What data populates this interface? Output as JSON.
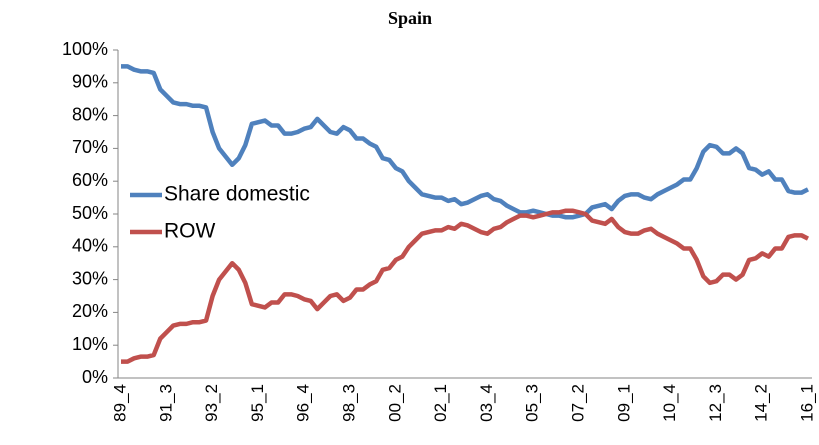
{
  "chart_data": {
    "type": "line",
    "title": "Spain",
    "categories": [
      "89_4",
      null,
      null,
      null,
      null,
      null,
      null,
      "91_3",
      null,
      null,
      null,
      null,
      null,
      null,
      "93_2",
      null,
      null,
      null,
      null,
      null,
      null,
      "95_1",
      null,
      null,
      null,
      null,
      null,
      null,
      "96_4",
      null,
      null,
      null,
      null,
      null,
      null,
      "98_3",
      null,
      null,
      null,
      null,
      null,
      null,
      "00_2",
      null,
      null,
      null,
      null,
      null,
      null,
      "02_1",
      null,
      null,
      null,
      null,
      null,
      null,
      "03_4",
      null,
      null,
      null,
      null,
      null,
      null,
      "05_3",
      null,
      null,
      null,
      null,
      null,
      null,
      "07_2",
      null,
      null,
      null,
      null,
      null,
      null,
      "09_1",
      null,
      null,
      null,
      null,
      null,
      null,
      "10_4",
      null,
      null,
      null,
      null,
      null,
      null,
      "12_3",
      null,
      null,
      null,
      null,
      null,
      null,
      "14_2",
      null,
      null,
      null,
      null,
      null,
      null,
      "16_1"
    ],
    "series": [
      {
        "name": "Share domestic",
        "color": "#4f81bd",
        "values": [
          95,
          95,
          94,
          93.5,
          93.5,
          93,
          88,
          86,
          84,
          83.5,
          83.5,
          83,
          83,
          82.5,
          75,
          70,
          67.5,
          65,
          67,
          71,
          77.5,
          78,
          78.5,
          77,
          77,
          74.5,
          74.5,
          75,
          76,
          76.5,
          79,
          77,
          75,
          74.5,
          76.5,
          75.5,
          73,
          73,
          71.5,
          70.5,
          67,
          66.5,
          64,
          63,
          60,
          58,
          56,
          55.5,
          55,
          55,
          54,
          54.5,
          53,
          53.5,
          54.5,
          55.5,
          56,
          54.5,
          54,
          52.5,
          51.5,
          50.5,
          50.5,
          51,
          50.5,
          50,
          49.5,
          49.5,
          49,
          49,
          49.5,
          50,
          52,
          52.5,
          53,
          51.5,
          54,
          55.5,
          56,
          56,
          55,
          54.5,
          56,
          57,
          58,
          59,
          60.5,
          60.5,
          64,
          69,
          71,
          70.5,
          68.5,
          68.5,
          70,
          68.5,
          64,
          63.5,
          62,
          63,
          60.5,
          60.5,
          57,
          56.5,
          56.5,
          57.5
        ]
      },
      {
        "name": "ROW",
        "color": "#c0504d",
        "values": [
          5,
          5,
          6,
          6.5,
          6.5,
          7,
          12,
          14,
          16,
          16.5,
          16.5,
          17,
          17,
          17.5,
          25,
          30,
          32.5,
          35,
          33,
          29,
          22.5,
          22,
          21.5,
          23,
          23,
          25.5,
          25.5,
          25,
          24,
          23.5,
          21,
          23,
          25,
          25.5,
          23.5,
          24.5,
          27,
          27,
          28.5,
          29.5,
          33,
          33.5,
          36,
          37,
          40,
          42,
          44,
          44.5,
          45,
          45,
          46,
          45.5,
          47,
          46.5,
          45.5,
          44.5,
          44,
          45.5,
          46,
          47.5,
          48.5,
          49.5,
          49.5,
          49,
          49.5,
          50,
          50.5,
          50.5,
          51,
          51,
          50.5,
          50,
          48,
          47.5,
          47,
          48.5,
          46,
          44.5,
          44,
          44,
          45,
          45.5,
          44,
          43,
          42,
          41,
          39.5,
          39.5,
          36,
          31,
          29,
          29.5,
          31.5,
          31.5,
          30,
          31.5,
          36,
          36.5,
          38,
          37,
          39.5,
          39.5,
          43,
          43.5,
          43.5,
          42.5
        ]
      }
    ],
    "ylim": [
      0,
      100
    ],
    "yticks": [
      {
        "value": 0,
        "label": "0%"
      },
      {
        "value": 10,
        "label": "10%"
      },
      {
        "value": 20,
        "label": "20%"
      },
      {
        "value": 30,
        "label": "30%"
      },
      {
        "value": 40,
        "label": "40%"
      },
      {
        "value": 50,
        "label": "50%"
      },
      {
        "value": 60,
        "label": "60%"
      },
      {
        "value": 70,
        "label": "70%"
      },
      {
        "value": 80,
        "label": "80%"
      },
      {
        "value": 90,
        "label": "90%"
      },
      {
        "value": 100,
        "label": "100%"
      }
    ],
    "grid": false,
    "legend": "left"
  }
}
